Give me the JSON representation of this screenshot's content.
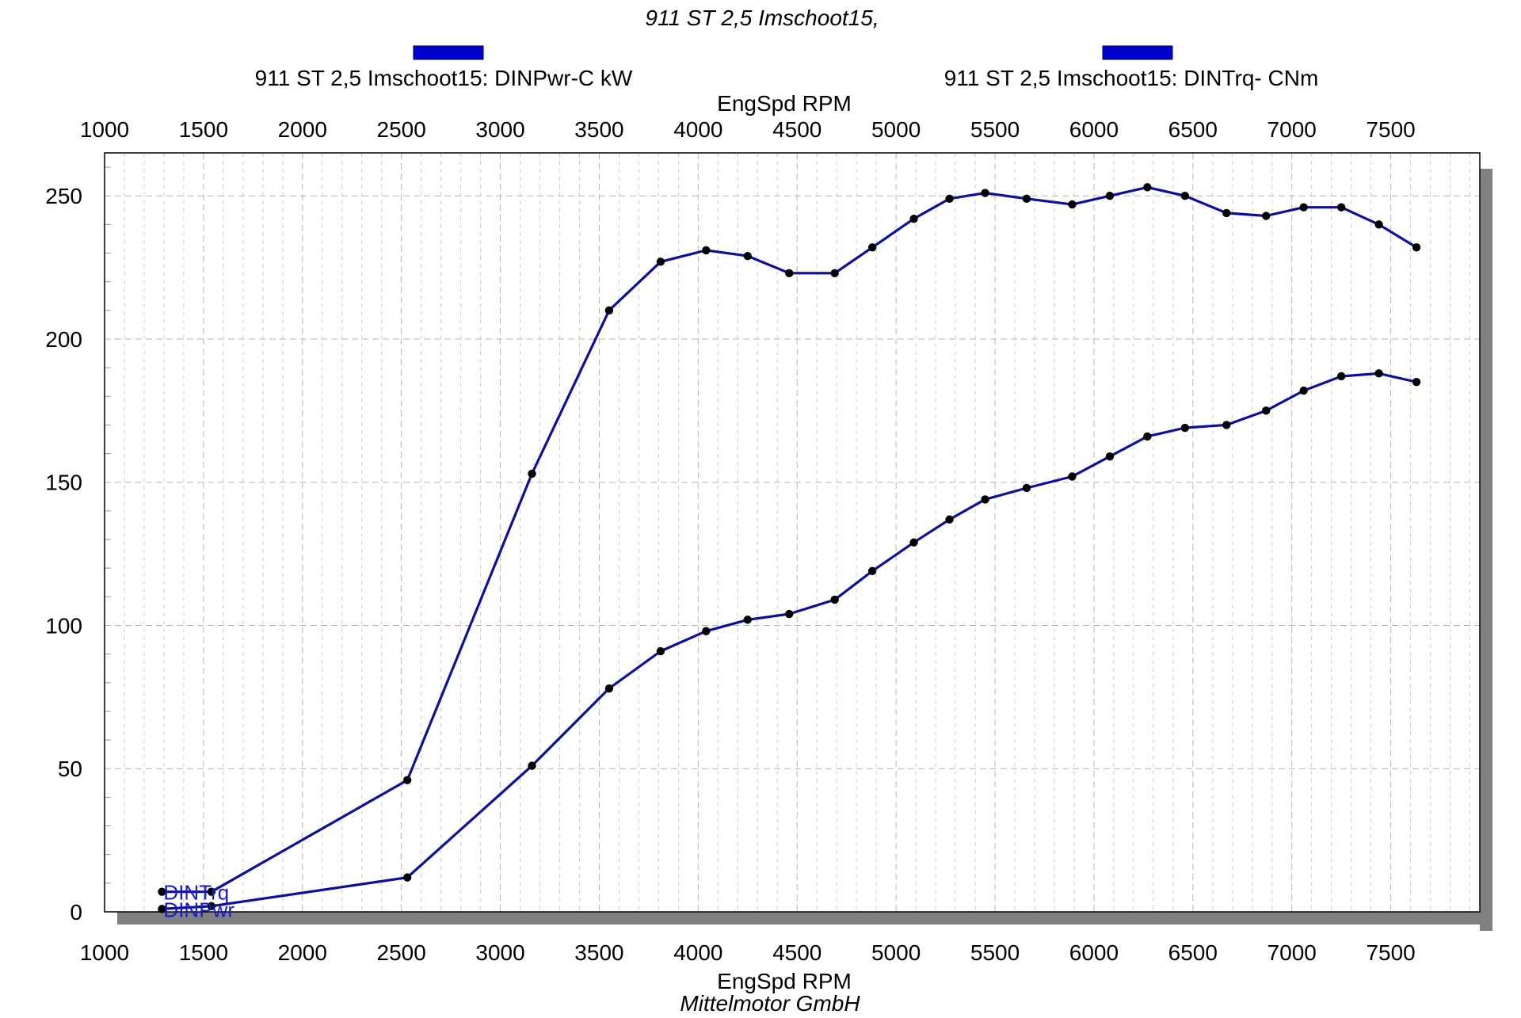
{
  "subtitle": "911 ST 2,5 Imschoot15,",
  "footer": "Mittelmotor GmbH",
  "legend": [
    {
      "label": "911 ST 2,5 Imschoot15: DINPwr-C kW",
      "color": "#0000cc"
    },
    {
      "label": "911 ST 2,5 Imschoot15: DINTrq- CNm",
      "color": "#0000cc"
    }
  ],
  "colors": {
    "series_line": "#0b0f9a",
    "marker": "#000000",
    "shadow": "#808080",
    "grid_major": "#b4b4b4",
    "grid_minor": "#cccccc",
    "axis": "#000000",
    "label_text": "#000000",
    "series_label_text": "#1a1acc"
  },
  "chart_data": {
    "type": "line",
    "xlabel_top": "EngSpd  RPM",
    "xlabel_bottom": "EngSpd  RPM",
    "xlim": [
      1000,
      7950
    ],
    "ylim": [
      0,
      265
    ],
    "x_ticks": [
      1000,
      1500,
      2000,
      2500,
      3000,
      3500,
      4000,
      4500,
      5000,
      5500,
      6000,
      6500,
      7000,
      7500
    ],
    "y_ticks": [
      0,
      50,
      100,
      150,
      200,
      250
    ],
    "grid": true,
    "series": [
      {
        "line_label": "DINTrq",
        "x": [
          1290,
          1540,
          2530,
          3160,
          3550,
          3810,
          4040,
          4250,
          4460,
          4690,
          4880,
          5090,
          5270,
          5450,
          5660,
          5890,
          6080,
          6270,
          6460,
          6670,
          6870,
          7060,
          7250,
          7440,
          7630
        ],
        "y": [
          7,
          7,
          46,
          153,
          210,
          227,
          231,
          229,
          223,
          223,
          232,
          242,
          249,
          251,
          249,
          247,
          250,
          253,
          250,
          244,
          243,
          246,
          246,
          240,
          232
        ]
      },
      {
        "line_label": "DINPwr",
        "x": [
          1290,
          1540,
          2530,
          3160,
          3550,
          3810,
          4040,
          4250,
          4460,
          4690,
          4880,
          5090,
          5270,
          5450,
          5660,
          5890,
          6080,
          6270,
          6460,
          6670,
          6870,
          7060,
          7250,
          7440,
          7630
        ],
        "y": [
          1,
          2,
          12,
          51,
          78,
          91,
          98,
          102,
          104,
          109,
          119,
          129,
          137,
          144,
          148,
          152,
          159,
          166,
          169,
          170,
          175,
          182,
          187,
          188,
          185
        ]
      }
    ]
  }
}
